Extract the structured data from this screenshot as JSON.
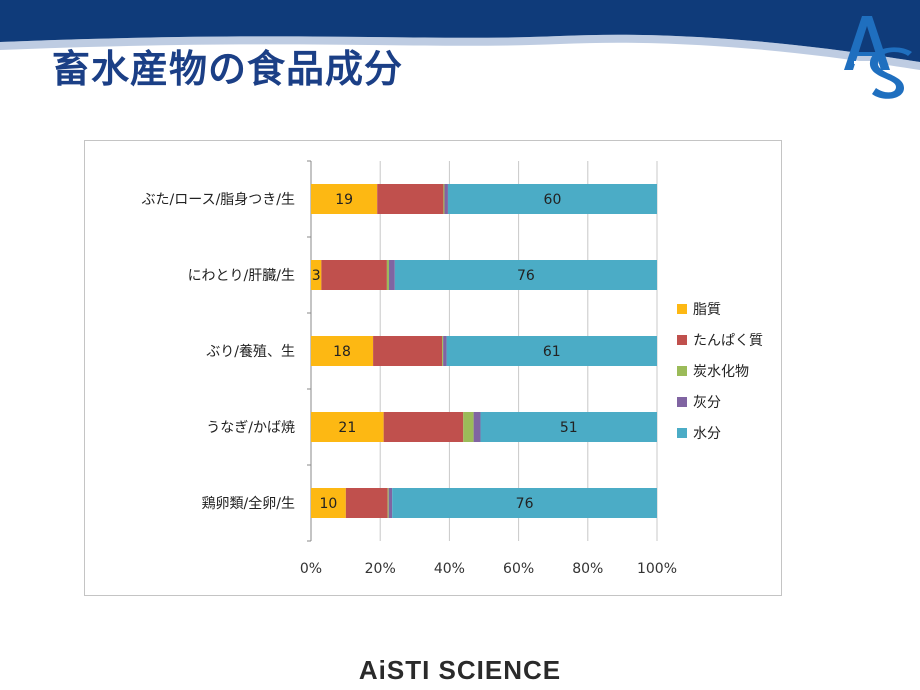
{
  "slide": {
    "title": "畜水産物の食品成分",
    "logo_text": "AS",
    "footer": "AiSTI SCIENCE"
  },
  "colors": {
    "band": "#0f3b7a",
    "title": "#1b3f86"
  },
  "chart_data": {
    "type": "bar",
    "orientation": "horizontal",
    "stacked": "percent",
    "categories": [
      "ぶた/ロース/脂身つき/生",
      "にわとり/肝臓/生",
      "ぶり/養殖、生",
      "うなぎ/かば焼",
      "鶏卵類/全卵/生"
    ],
    "series": [
      {
        "name": "脂質",
        "color": "#fdb813",
        "values": [
          19,
          3,
          18,
          21,
          10
        ]
      },
      {
        "name": "たんぱく質",
        "color": "#c0504d",
        "values": [
          19,
          19,
          20,
          23,
          12
        ]
      },
      {
        "name": "炭水化物",
        "color": "#9bbb59",
        "values": [
          0.3,
          0.6,
          0.3,
          3,
          0.3
        ]
      },
      {
        "name": "灰分",
        "color": "#8064a2",
        "values": [
          1,
          1.7,
          1,
          2,
          1
        ]
      },
      {
        "name": "水分",
        "color": "#4bacc6",
        "values": [
          60,
          76,
          61,
          51,
          76
        ]
      }
    ],
    "data_labels": {
      "脂質": [
        "19",
        "3",
        "18",
        "21",
        "10"
      ],
      "水分": [
        "60",
        "76",
        "61",
        "51",
        "76"
      ]
    },
    "x_ticks": [
      "0%",
      "20%",
      "40%",
      "60%",
      "80%",
      "100%"
    ],
    "xlim": [
      0,
      100
    ],
    "grid": true,
    "legend": "right"
  }
}
